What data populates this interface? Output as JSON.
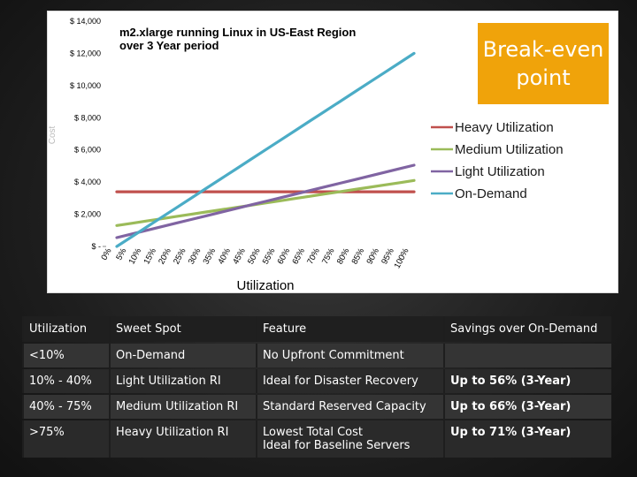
{
  "chart_data": {
    "type": "line",
    "title": "m2.xlarge running Linux in US-East Region over 3 Year period",
    "title_lines": [
      "m2.xlarge running Linux in US-East Region",
      "over 3 Year period"
    ],
    "xlabel": "Utilization",
    "ylabel": "Cost",
    "categories": [
      "0%",
      "5%",
      "10%",
      "15%",
      "20%",
      "25%",
      "30%",
      "35%",
      "40%",
      "45%",
      "50%",
      "55%",
      "60%",
      "65%",
      "70%",
      "75%",
      "80%",
      "85%",
      "90%",
      "95%",
      "100%"
    ],
    "y_ticks": [
      "$ -",
      "$ 2,000",
      "$ 4,000",
      "$ 6,000",
      "$ 8,000",
      "$ 10,000",
      "$ 12,000",
      "$ 14,000"
    ],
    "ylim": [
      0,
      14000
    ],
    "series": [
      {
        "name": "Heavy Utilization",
        "color": "#c0504d",
        "values": [
          3400,
          3400,
          3400,
          3400,
          3400,
          3400,
          3400,
          3400,
          3400,
          3400,
          3400,
          3400,
          3400,
          3400,
          3400,
          3400,
          3400,
          3400,
          3400,
          3400,
          3400
        ]
      },
      {
        "name": "Medium Utilization",
        "color": "#9bbb59",
        "values": [
          1300,
          1440,
          1580,
          1720,
          1860,
          2000,
          2140,
          2280,
          2420,
          2560,
          2700,
          2840,
          2980,
          3120,
          3260,
          3400,
          3540,
          3680,
          3820,
          3960,
          4100
        ]
      },
      {
        "name": "Light Utilization",
        "color": "#8064a2",
        "values": [
          550,
          775,
          1000,
          1225,
          1450,
          1675,
          1900,
          2125,
          2350,
          2575,
          2800,
          3025,
          3250,
          3475,
          3700,
          3925,
          4150,
          4375,
          4600,
          4825,
          5050
        ]
      },
      {
        "name": "On-Demand",
        "color": "#4bacc6",
        "values": [
          0,
          600,
          1200,
          1800,
          2400,
          3000,
          3600,
          4200,
          4800,
          5400,
          6000,
          6600,
          7200,
          7800,
          8400,
          9000,
          9600,
          10200,
          10800,
          11400,
          12000
        ]
      }
    ],
    "annotation": "Break-even point",
    "annotation_lines": [
      "Break-even",
      "point"
    ],
    "annotation_color": "#f0a30a",
    "legend_position": "right"
  },
  "table": {
    "headers": [
      "Utilization",
      "Sweet Spot",
      "Feature",
      "Savings over On-Demand"
    ],
    "rows": [
      [
        "<10%",
        "On-Demand",
        "No Upfront Commitment",
        ""
      ],
      [
        "10% - 40%",
        "Light Utilization RI",
        "Ideal for Disaster Recovery",
        "Up to 56% (3-Year)"
      ],
      [
        "40% - 75%",
        "Medium Utilization RI",
        "Standard Reserved Capacity",
        "Up to 66% (3-Year)"
      ],
      [
        ">75%",
        "Heavy Utilization RI",
        "Lowest Total Cost\nIdeal for Baseline Servers",
        "Up to 71% (3-Year)"
      ]
    ]
  }
}
